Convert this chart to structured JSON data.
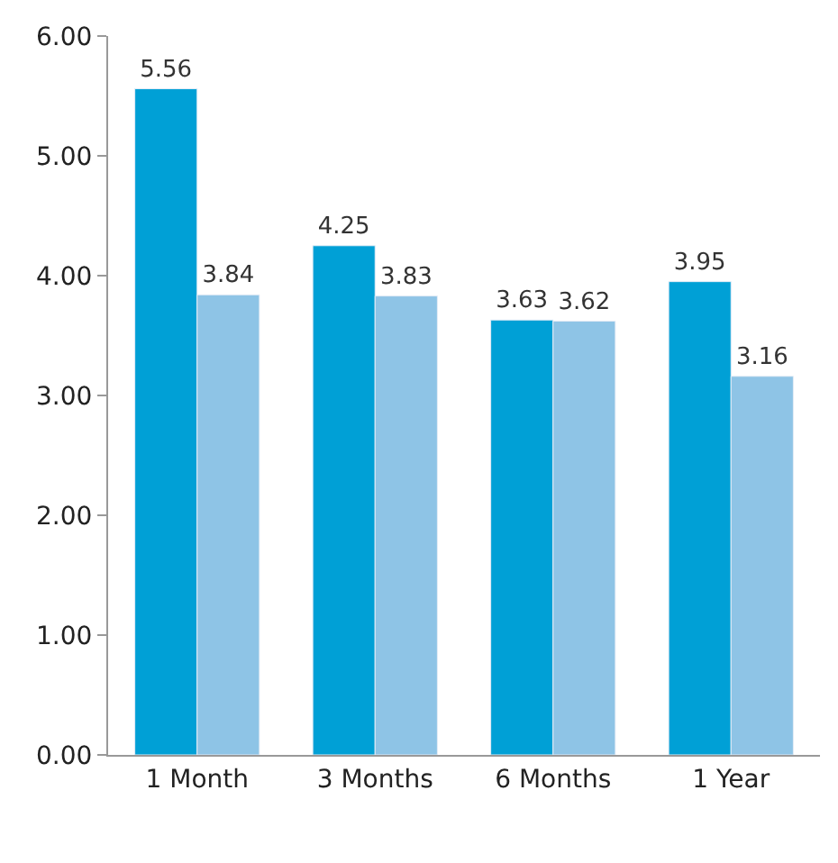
{
  "chart_data": {
    "type": "bar",
    "categories": [
      "1 Month",
      "3 Months",
      "6 Months",
      "1 Year"
    ],
    "series": [
      {
        "color": "#00a0d6",
        "values": [
          5.56,
          4.25,
          3.63,
          3.95
        ]
      },
      {
        "color": "#8ec4e6",
        "values": [
          3.84,
          3.83,
          3.62,
          3.16
        ]
      }
    ],
    "ylim": [
      0,
      6
    ],
    "yticks": [
      {
        "value": 0,
        "label": "0.00"
      },
      {
        "value": 1,
        "label": "1.00"
      },
      {
        "value": 2,
        "label": "2.00"
      },
      {
        "value": 3,
        "label": "3.00"
      },
      {
        "value": 4,
        "label": "4.00"
      },
      {
        "value": 5,
        "label": "5.00"
      },
      {
        "value": 6,
        "label": "6.00"
      }
    ],
    "data_labels": true
  }
}
